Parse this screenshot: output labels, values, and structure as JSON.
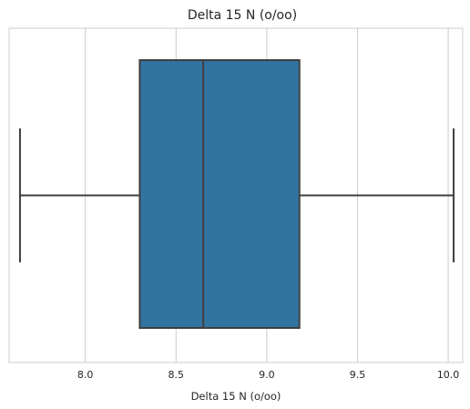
{
  "chart_data": {
    "type": "box",
    "title": "Delta 15 N (o/oo)",
    "xlabel": "Delta 15 N (o/oo)",
    "ylabel": "",
    "orientation": "horizontal",
    "xlim": [
      7.58,
      10.08
    ],
    "xticks": [
      "8.0",
      "8.5",
      "9.0",
      "9.5",
      "10.0"
    ],
    "grid": true,
    "box": {
      "whisker_low": 7.64,
      "q1": 8.3,
      "median": 8.65,
      "q3": 9.18,
      "whisker_high": 10.03
    },
    "colors": {
      "box_fill": "#3274a1",
      "line": "#3f3f3f",
      "grid": "#cccccc",
      "frame": "#cccccc"
    }
  }
}
